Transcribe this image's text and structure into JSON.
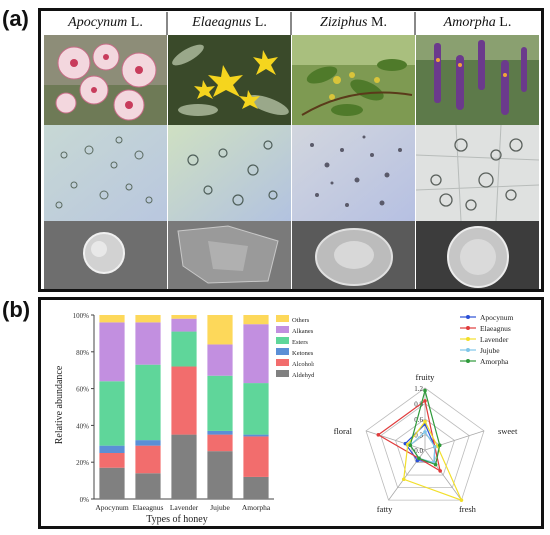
{
  "panel_a": {
    "letter": "(a)",
    "genera": [
      {
        "name": "Apocynum",
        "suffix": " L."
      },
      {
        "name": "Elaeagnus",
        "suffix": " L."
      },
      {
        "name": "Ziziphus",
        "suffix": " M."
      },
      {
        "name": "Amorpha",
        "suffix": " L."
      }
    ]
  },
  "panel_b": {
    "letter": "(b)",
    "bar_chart": {
      "ylabel": "Relative abundance",
      "xlabel": "Types of honey",
      "yticks": [
        "0%",
        "20%",
        "40%",
        "60%",
        "80%",
        "100%"
      ]
    },
    "radar": {
      "axes": [
        "fruity",
        "sweet",
        "fresh",
        "fatty",
        "floral"
      ],
      "ring_labels": [
        "1.2",
        "0.9",
        "0.6",
        "0.3",
        "0.0"
      ]
    }
  },
  "chart_data": [
    {
      "type": "bar",
      "stacked": true,
      "categories": [
        "Apocynum",
        "Elaeagnus",
        "Lavender",
        "Jujube",
        "Amorpha"
      ],
      "series": [
        {
          "name": "Aldehydes",
          "color": "#808080",
          "values": [
            17,
            14,
            35,
            26,
            12
          ]
        },
        {
          "name": "Alcohols",
          "color": "#f26d6d",
          "values": [
            8,
            15,
            37,
            9,
            22
          ]
        },
        {
          "name": "Ketones",
          "color": "#5b8fd6",
          "values": [
            4,
            3,
            0,
            2,
            1
          ]
        },
        {
          "name": "Esters",
          "color": "#5fd69a",
          "values": [
            35,
            41,
            19,
            30,
            28
          ]
        },
        {
          "name": "Alkanes",
          "color": "#c28fe0",
          "values": [
            32,
            23,
            7,
            17,
            32
          ]
        },
        {
          "name": "Others",
          "color": "#fdd85a",
          "values": [
            4,
            4,
            2,
            16,
            5
          ]
        }
      ],
      "legend_order": [
        "Others",
        "Alkanes",
        "Esters",
        "Ketones",
        "Alcohols",
        "Aldehydes"
      ],
      "ylim": [
        0,
        100
      ],
      "ylabel": "Relative abundance",
      "xlabel": "Types of honey",
      "legend_position": "top-right"
    },
    {
      "type": "radar",
      "axes": [
        "fruity",
        "sweet",
        "fresh",
        "fatty",
        "floral"
      ],
      "rmax": 1.2,
      "series": [
        {
          "name": "Apocynum",
          "color": "#2a4fd6",
          "values": [
            0.5,
            0.2,
            0.3,
            0.25,
            0.4
          ]
        },
        {
          "name": "Elaeagnus",
          "color": "#e03b3b",
          "values": [
            0.95,
            0.2,
            0.5,
            0.2,
            0.95
          ]
        },
        {
          "name": "Lavender",
          "color": "#f2df2a",
          "values": [
            0.55,
            0.25,
            1.2,
            0.7,
            0.35
          ]
        },
        {
          "name": "Jujube",
          "color": "#7fc6e8",
          "values": [
            0.35,
            0.2,
            0.3,
            0.2,
            0.3
          ]
        },
        {
          "name": "Amorpha",
          "color": "#2e9a3a",
          "values": [
            1.15,
            0.3,
            0.35,
            0.2,
            0.3
          ]
        }
      ],
      "legend_position": "top-right"
    }
  ]
}
